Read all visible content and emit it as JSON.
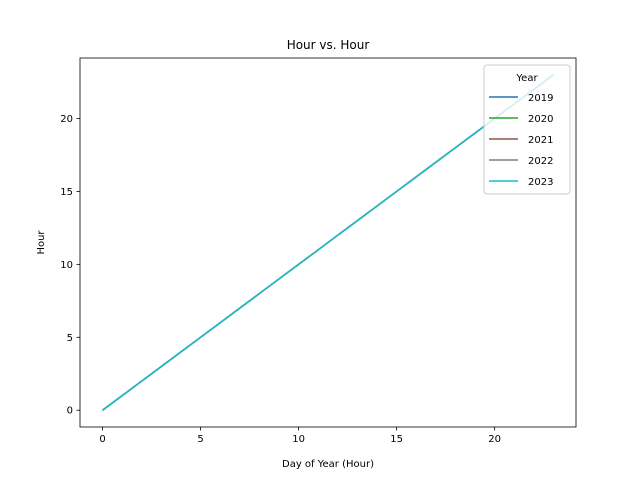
{
  "chart_data": {
    "type": "line",
    "title": "Hour vs. Hour",
    "xlabel": "Day of Year (Hour)",
    "ylabel": "Hour",
    "xlim": [
      -1.15,
      24.15
    ],
    "ylim": [
      -1.15,
      24.15
    ],
    "xticks": [
      0,
      5,
      10,
      15,
      20
    ],
    "yticks": [
      0,
      5,
      10,
      15,
      20
    ],
    "x": [
      0,
      1,
      2,
      3,
      4,
      5,
      6,
      7,
      8,
      9,
      10,
      11,
      12,
      13,
      14,
      15,
      16,
      17,
      18,
      19,
      20,
      21,
      22,
      23
    ],
    "grid": false,
    "legend": {
      "title": "Year",
      "placement": "top-right"
    },
    "series": [
      {
        "name": "2019",
        "color": "#1f77b4",
        "values": [
          0,
          1,
          2,
          3,
          4,
          5,
          6,
          7,
          8,
          9,
          10,
          11,
          12,
          13,
          14,
          15,
          16,
          17,
          18,
          19,
          20,
          21,
          22,
          23
        ]
      },
      {
        "name": "2020",
        "color": "#2ca02c",
        "values": [
          0,
          1,
          2,
          3,
          4,
          5,
          6,
          7,
          8,
          9,
          10,
          11,
          12,
          13,
          14,
          15,
          16,
          17,
          18,
          19,
          20,
          21,
          22,
          23
        ]
      },
      {
        "name": "2021",
        "color": "#8c564b",
        "values": [
          0,
          1,
          2,
          3,
          4,
          5,
          6,
          7,
          8,
          9,
          10,
          11,
          12,
          13,
          14,
          15,
          16,
          17,
          18,
          19,
          20,
          21,
          22,
          23
        ]
      },
      {
        "name": "2022",
        "color": "#7f7f7f",
        "values": [
          0,
          1,
          2,
          3,
          4,
          5,
          6,
          7,
          8,
          9,
          10,
          11,
          12,
          13,
          14,
          15,
          16,
          17,
          18,
          19,
          20,
          21,
          22,
          23
        ]
      },
      {
        "name": "2023",
        "color": "#17becf",
        "values": [
          0,
          1,
          2,
          3,
          4,
          5,
          6,
          7,
          8,
          9,
          10,
          11,
          12,
          13,
          14,
          15,
          16,
          17,
          18,
          19,
          20,
          21,
          22,
          23
        ]
      }
    ]
  }
}
